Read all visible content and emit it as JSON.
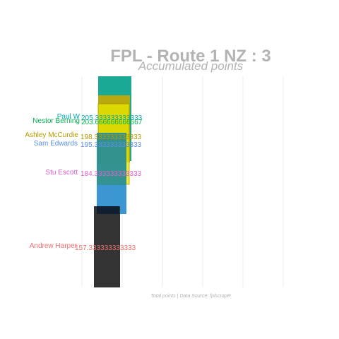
{
  "chart_data": {
    "type": "bar",
    "title": "FPL - Route 1 NZ : 3",
    "subtitle": "Accumulated points",
    "caption": "Total points | Data Source: fplscrapR",
    "xlabel": "",
    "ylabel": "",
    "grid": true,
    "legend": "none",
    "series": [
      {
        "name": "Paul W",
        "value": 205.333333333333,
        "value_label": "205.333333333333",
        "fill": "#00a08a",
        "label_color": "#00a9b5"
      },
      {
        "name": "Nestor Berning",
        "value": 203.666666666667,
        "value_label": "203.666666666667",
        "fill": "#00a0b0",
        "label_color": "#00b050"
      },
      {
        "name": "Ashley McCurdie",
        "value": 198.333333333333,
        "value_label": "198.333333333333",
        "fill": "#c9a800",
        "label_color": "#b59a00"
      },
      {
        "name": "Sam Edwards",
        "value": 195.333333333333,
        "value_label": "195.333333333333",
        "fill": "#6ca0e6",
        "label_color": "#5b8fe8"
      },
      {
        "name": "Stu Escott",
        "value": 184.333333333333,
        "value_label": "184.333333333333",
        "fill": "#e6e600",
        "label_color": "#e060d0"
      },
      {
        "name": "Andrew Harper",
        "value": 157.333333333333,
        "value_label": "157.333333333333",
        "fill": "#1a1a1a",
        "label_color": "#f07070"
      }
    ]
  }
}
